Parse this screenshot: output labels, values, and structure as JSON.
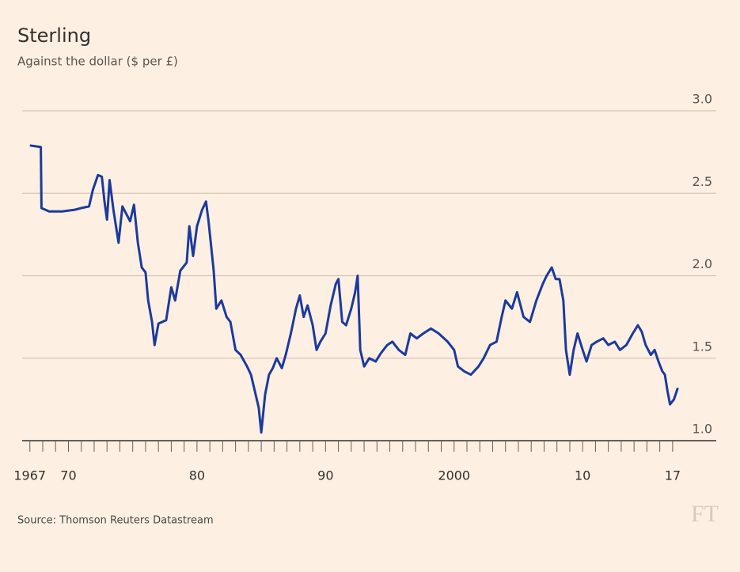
{
  "chart_data": {
    "type": "line",
    "title": "Sterling",
    "subtitle": "Against the dollar ($ per £)",
    "source": "Source: Thomson Reuters Datastream",
    "logo": "FT",
    "xlim": [
      1966.4,
      2017.5
    ],
    "ylim": [
      1,
      3
    ],
    "xticks": [
      1967,
      {
        "value": 1970,
        "label": "70"
      },
      {
        "value": 1980,
        "label": "80"
      },
      {
        "value": 1990,
        "label": "90"
      },
      2000,
      {
        "value": 2010,
        "label": "10"
      },
      {
        "value": 2017,
        "label": "17"
      }
    ],
    "xminorticks": [
      1967,
      1968,
      1969,
      1970,
      1971,
      1972,
      1973,
      1974,
      1975,
      1976,
      1977,
      1978,
      1979,
      1980,
      1981,
      1982,
      1983,
      1984,
      1985,
      1986,
      1987,
      1988,
      1989,
      1990,
      1991,
      1992,
      1993,
      1994,
      1995,
      1996,
      1997,
      1998,
      1999,
      2000,
      2001,
      2002,
      2003,
      2004,
      2005,
      2006,
      2007,
      2008,
      2009,
      2010,
      2011,
      2012,
      2013,
      2014,
      2015,
      2016,
      2017
    ],
    "yticks": [
      {
        "value": 1,
        "label": "1.0"
      },
      {
        "value": 1.5,
        "label": "1.5"
      },
      {
        "value": 2,
        "label": "2.0"
      },
      {
        "value": 2.5,
        "label": "2.5"
      },
      {
        "value": 3,
        "label": "3.0"
      }
    ],
    "grid": true,
    "series": [
      {
        "name": "Sterling",
        "color": "#1c3a9e",
        "x": [
          1967.0,
          1967.85,
          1967.9,
          1968.5,
          1969.5,
          1970.5,
          1971.0,
          1971.6,
          1971.9,
          1972.3,
          1972.6,
          1972.8,
          1973.0,
          1973.2,
          1973.5,
          1973.9,
          1974.2,
          1974.8,
          1975.1,
          1975.4,
          1975.7,
          1976.0,
          1976.2,
          1976.5,
          1976.7,
          1977.0,
          1977.6,
          1978.0,
          1978.3,
          1978.7,
          1979.2,
          1979.4,
          1979.7,
          1980.0,
          1980.4,
          1980.7,
          1980.9,
          1981.3,
          1981.5,
          1981.9,
          1982.3,
          1982.6,
          1983.0,
          1983.4,
          1983.9,
          1984.2,
          1984.5,
          1984.8,
          1985.0,
          1985.3,
          1985.6,
          1985.9,
          1986.2,
          1986.6,
          1986.9,
          1987.3,
          1987.7,
          1988.0,
          1988.3,
          1988.6,
          1989.0,
          1989.3,
          1989.6,
          1990.0,
          1990.4,
          1990.8,
          1991.0,
          1991.3,
          1991.6,
          1992.0,
          1992.3,
          1992.5,
          1992.7,
          1993.0,
          1993.4,
          1993.9,
          1994.3,
          1994.8,
          1995.2,
          1995.7,
          1996.2,
          1996.6,
          1997.1,
          1997.6,
          1998.2,
          1998.8,
          1999.5,
          2000.0,
          2000.3,
          2000.8,
          2001.3,
          2001.9,
          2002.3,
          2002.8,
          2003.3,
          2003.7,
          2004.0,
          2004.5,
          2004.9,
          2005.4,
          2005.9,
          2006.4,
          2006.9,
          2007.2,
          2007.6,
          2007.9,
          2008.2,
          2008.5,
          2008.7,
          2009.0,
          2009.3,
          2009.6,
          2010.0,
          2010.3,
          2010.7,
          2011.1,
          2011.6,
          2012.0,
          2012.5,
          2012.9,
          2013.4,
          2013.9,
          2014.3,
          2014.6,
          2014.9,
          2015.3,
          2015.6,
          2015.9,
          2016.2,
          2016.4,
          2016.6,
          2016.8,
          2017.1,
          2017.4
        ],
        "values": [
          2.79,
          2.78,
          2.41,
          2.39,
          2.39,
          2.4,
          2.41,
          2.42,
          2.52,
          2.61,
          2.6,
          2.45,
          2.34,
          2.58,
          2.4,
          2.2,
          2.42,
          2.33,
          2.43,
          2.2,
          2.05,
          2.02,
          1.85,
          1.72,
          1.58,
          1.71,
          1.73,
          1.93,
          1.85,
          2.03,
          2.08,
          2.3,
          2.12,
          2.3,
          2.4,
          2.45,
          2.33,
          2.03,
          1.8,
          1.85,
          1.75,
          1.72,
          1.55,
          1.52,
          1.45,
          1.4,
          1.3,
          1.2,
          1.05,
          1.28,
          1.4,
          1.44,
          1.5,
          1.44,
          1.52,
          1.65,
          1.8,
          1.88,
          1.75,
          1.82,
          1.7,
          1.55,
          1.6,
          1.65,
          1.82,
          1.95,
          1.98,
          1.72,
          1.7,
          1.8,
          1.9,
          2.0,
          1.55,
          1.45,
          1.5,
          1.48,
          1.53,
          1.58,
          1.6,
          1.55,
          1.52,
          1.65,
          1.62,
          1.65,
          1.68,
          1.65,
          1.6,
          1.55,
          1.45,
          1.42,
          1.4,
          1.45,
          1.5,
          1.58,
          1.6,
          1.75,
          1.85,
          1.8,
          1.9,
          1.75,
          1.72,
          1.85,
          1.95,
          2.0,
          2.05,
          1.98,
          1.98,
          1.85,
          1.55,
          1.4,
          1.55,
          1.65,
          1.55,
          1.48,
          1.58,
          1.6,
          1.62,
          1.58,
          1.6,
          1.55,
          1.58,
          1.65,
          1.7,
          1.66,
          1.58,
          1.52,
          1.55,
          1.48,
          1.42,
          1.4,
          1.3,
          1.22,
          1.25,
          1.32
        ]
      }
    ]
  }
}
